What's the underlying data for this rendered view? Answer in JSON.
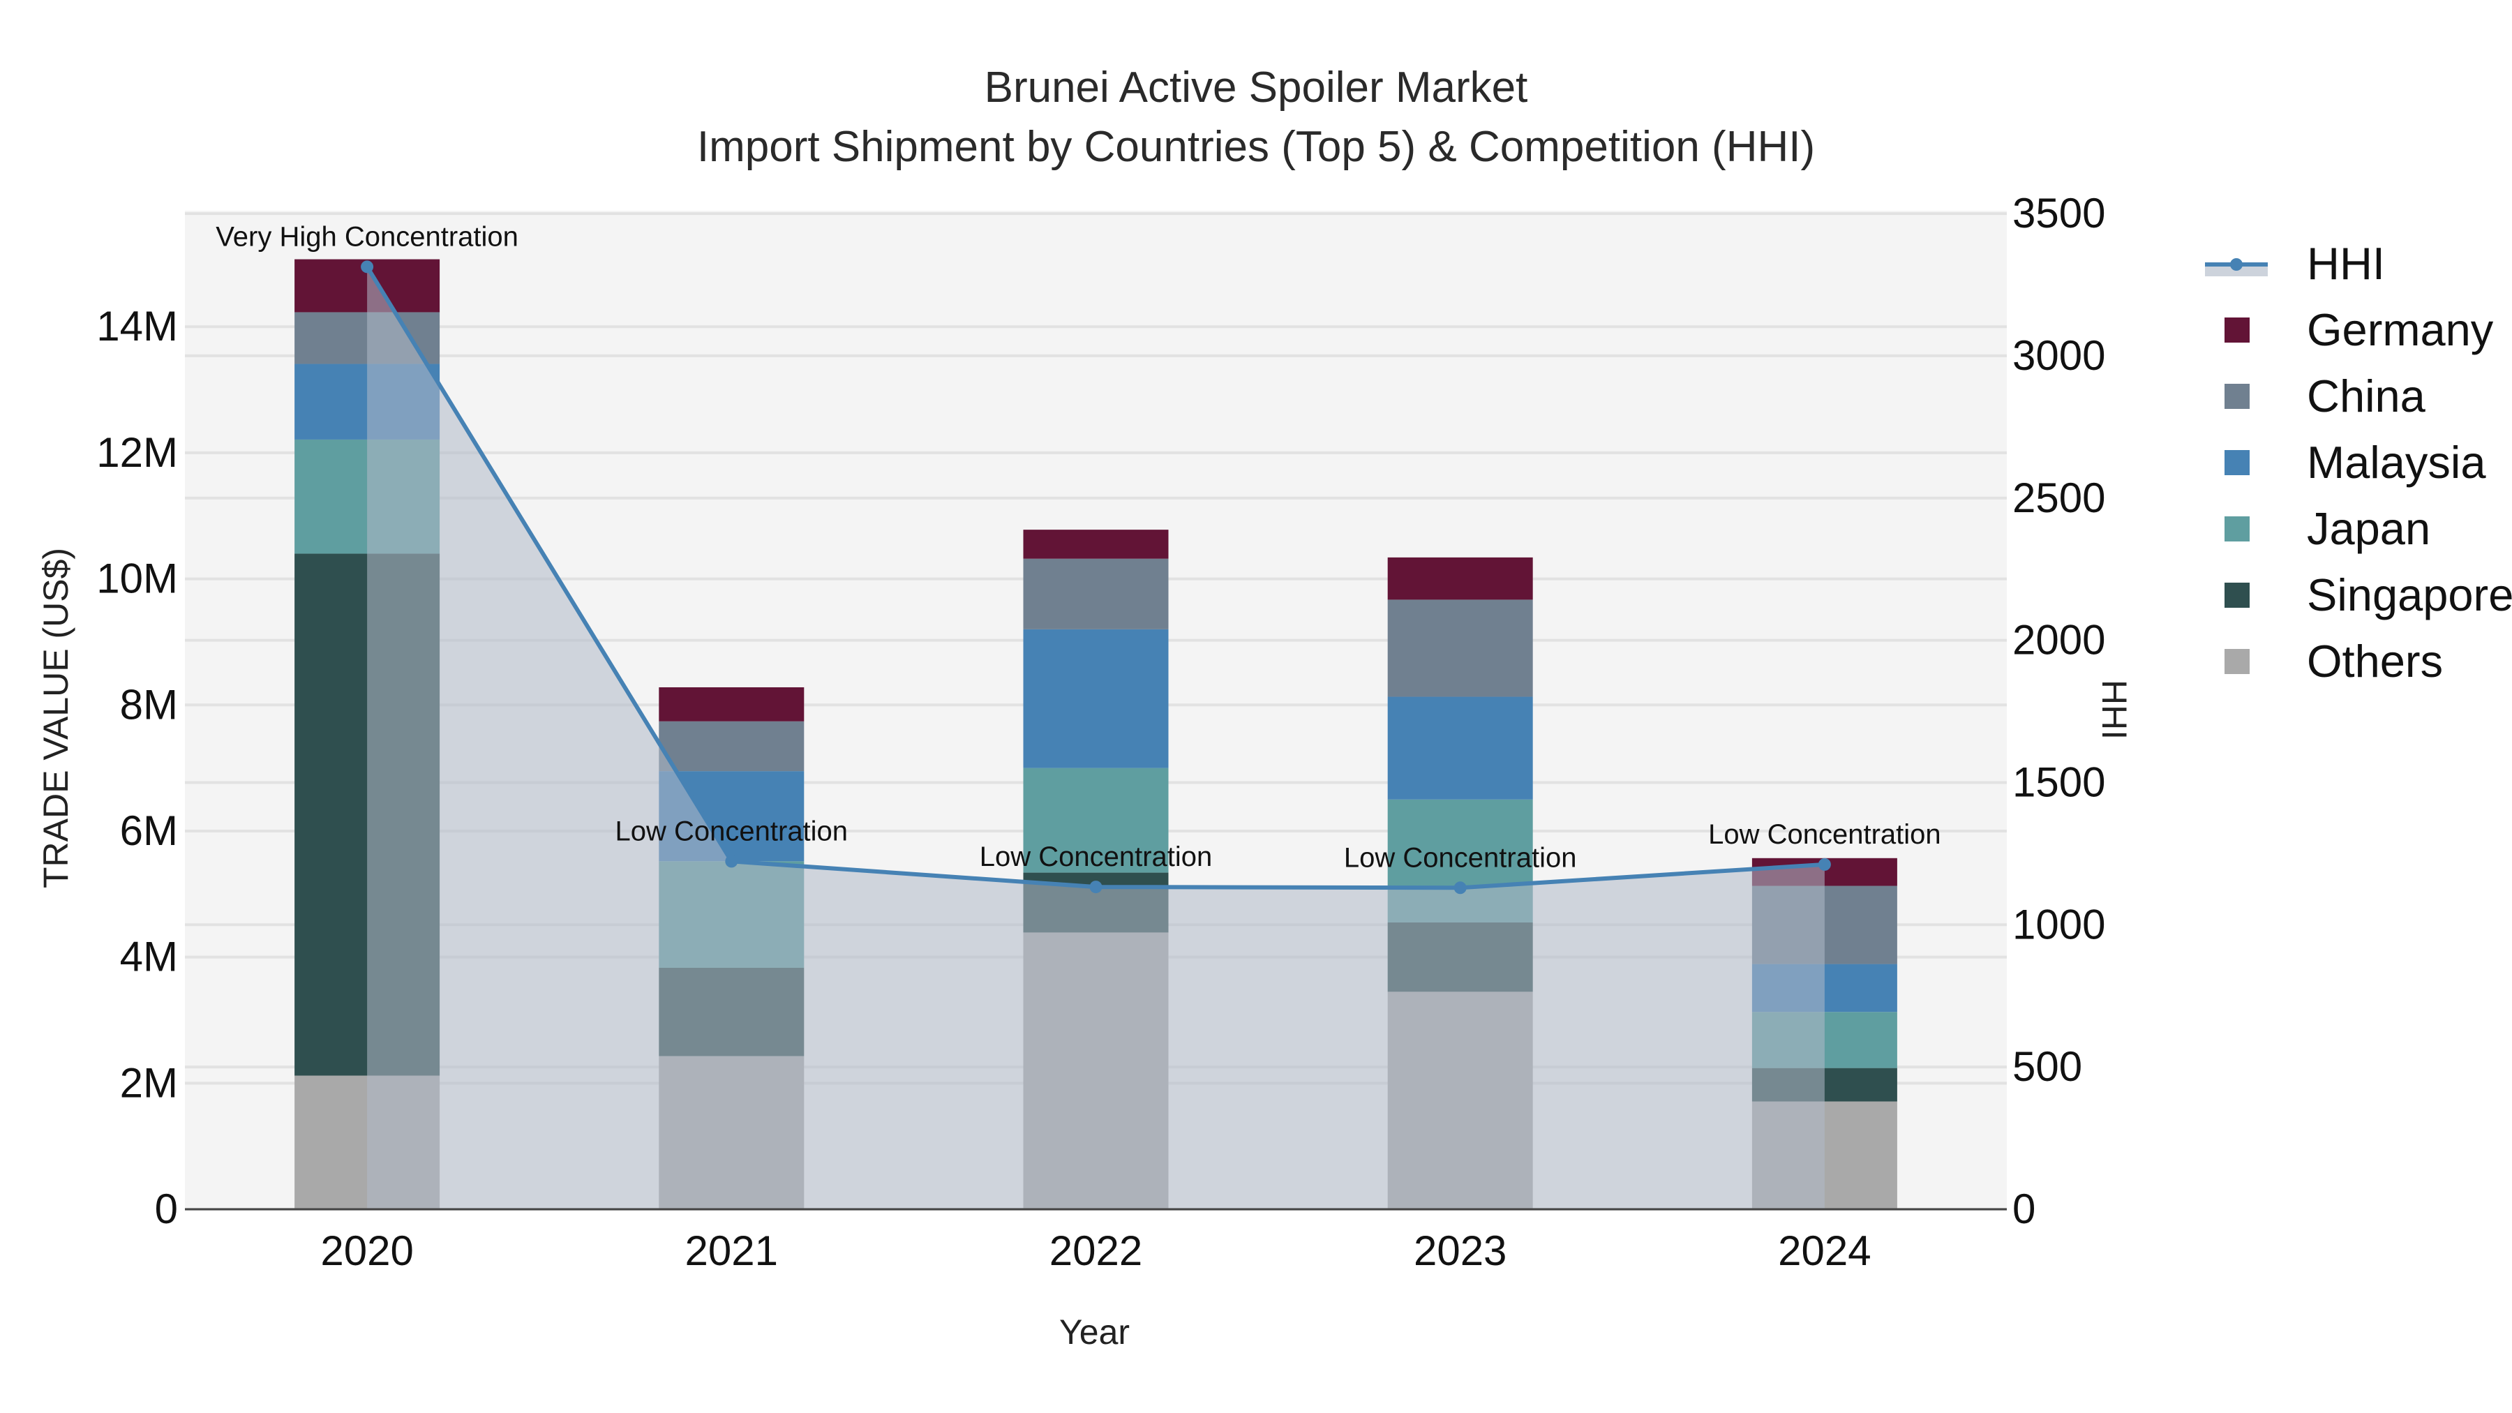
{
  "header": {
    "title_line1": "Brunei Active Spoiler Market",
    "title_line2": "Import Shipment by Countries (Top 5) & Competition (HHI)"
  },
  "axes": {
    "x_title": "Year",
    "y_left_title": "TRADE VALUE (US$)",
    "y_right_title": "HHI"
  },
  "legend": {
    "items": [
      {
        "label": "HHI",
        "type": "line",
        "color": "#4682B4"
      },
      {
        "label": "Germany",
        "type": "bar",
        "color": "#621436"
      },
      {
        "label": "China",
        "type": "bar",
        "color": "#708090"
      },
      {
        "label": "Malaysia",
        "type": "bar",
        "color": "#4682B4"
      },
      {
        "label": "Japan",
        "type": "bar",
        "color": "#5F9EA0"
      },
      {
        "label": "Singapore",
        "type": "bar",
        "color": "#2F4F4F"
      },
      {
        "label": "Others",
        "type": "bar",
        "color": "#A9A9A9"
      }
    ]
  },
  "colors": {
    "plot_bg": "#F4F4F4",
    "grid": "#E2E2E2",
    "hhi_line": "#4682B4",
    "hhi_fill": "rgba(176,186,200,0.55)"
  },
  "chart_data": {
    "type": "bar",
    "subtype": "stacked bar + line (secondary axis) with area fill",
    "title": "Brunei Active Spoiler Market\nImport Shipment by Countries (Top 5) & Competition (HHI)",
    "xlabel": "Year",
    "ylabel": "TRADE VALUE (US$)",
    "y2label": "HHI",
    "categories": [
      "2020",
      "2021",
      "2022",
      "2023",
      "2024"
    ],
    "ylim": [
      0,
      15840000
    ],
    "y2lim": [
      0,
      3510
    ],
    "y_ticks": [
      0,
      2000000,
      4000000,
      6000000,
      8000000,
      10000000,
      12000000,
      14000000
    ],
    "y_tick_labels": [
      "0",
      "2M",
      "4M",
      "6M",
      "8M",
      "10M",
      "12M",
      "14M"
    ],
    "y2_ticks": [
      0,
      500,
      1000,
      1500,
      2000,
      2500,
      3000,
      3500
    ],
    "y2_tick_labels": [
      "0",
      "500",
      "1000",
      "1500",
      "2000",
      "2500",
      "3000",
      "3500"
    ],
    "grid": true,
    "legend_position": "right",
    "series": [
      {
        "name": "Others",
        "color": "#A9A9A9",
        "values": [
          2120000,
          2430000,
          4390000,
          3450000,
          1710000
        ]
      },
      {
        "name": "Singapore",
        "color": "#2F4F4F",
        "values": [
          8280000,
          1400000,
          950000,
          1100000,
          530000
        ]
      },
      {
        "name": "Japan",
        "color": "#5F9EA0",
        "values": [
          1810000,
          1690000,
          1660000,
          1950000,
          890000
        ]
      },
      {
        "name": "Malaysia",
        "color": "#4682B4",
        "values": [
          1200000,
          1430000,
          2200000,
          1630000,
          760000
        ]
      },
      {
        "name": "China",
        "color": "#708090",
        "values": [
          820000,
          790000,
          1120000,
          1540000,
          1240000
        ]
      },
      {
        "name": "Germany",
        "color": "#621436",
        "values": [
          840000,
          540000,
          460000,
          670000,
          440000
        ]
      }
    ],
    "line_series": {
      "name": "HHI",
      "axis": "y2",
      "color": "#4682B4",
      "values": [
        3313,
        1223,
        1133,
        1130,
        1212
      ],
      "annotations": [
        "Very High Concentration",
        "Low Concentration",
        "Low Concentration",
        "Low Concentration",
        "Low Concentration"
      ]
    }
  }
}
